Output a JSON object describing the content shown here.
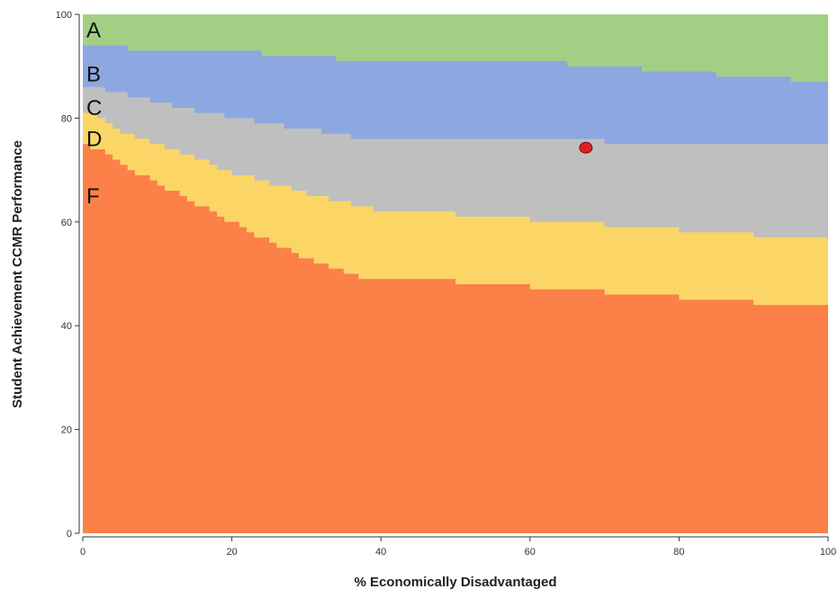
{
  "chart_data": {
    "type": "area",
    "xlabel": "% Economically Disadvantaged",
    "ylabel": "Student Achievement CCMR Performance",
    "xlim": [
      0,
      100
    ],
    "ylim": [
      0,
      100
    ],
    "x_ticks": [
      0,
      20,
      40,
      60,
      80,
      100
    ],
    "y_ticks": [
      0,
      20,
      40,
      60,
      80,
      100
    ],
    "grid": false,
    "band_labels": [
      "A",
      "B",
      "C",
      "D",
      "F"
    ],
    "band_colors": {
      "A": "#a3cf85",
      "B": "#8da8e0",
      "C": "#bfbfbf",
      "D": "#fbd667",
      "F": "#fb8148"
    },
    "x": [
      0,
      1,
      2,
      3,
      4,
      5,
      6,
      7,
      8,
      9,
      10,
      11,
      12,
      13,
      14,
      15,
      16,
      17,
      18,
      19,
      20,
      21,
      22,
      23,
      24,
      25,
      26,
      27,
      28,
      29,
      30,
      31,
      32,
      33,
      34,
      35,
      36,
      37,
      38,
      39,
      40,
      45,
      50,
      55,
      60,
      65,
      70,
      75,
      80,
      85,
      90,
      95,
      100
    ],
    "series": [
      {
        "name": "F",
        "values": [
          75,
          74,
          74,
          73,
          72,
          71,
          70,
          69,
          69,
          68,
          67,
          66,
          66,
          65,
          64,
          63,
          63,
          62,
          61,
          60,
          60,
          59,
          58,
          57,
          57,
          56,
          55,
          55,
          54,
          53,
          53,
          52,
          52,
          51,
          51,
          50,
          50,
          49,
          49,
          49,
          49,
          49,
          48,
          48,
          47,
          47,
          46,
          46,
          45,
          45,
          44,
          44,
          44
        ]
      },
      {
        "name": "D",
        "values": [
          81,
          81,
          80,
          79,
          78,
          77,
          77,
          76,
          76,
          75,
          75,
          74,
          74,
          73,
          73,
          72,
          72,
          71,
          70,
          70,
          69,
          69,
          69,
          68,
          68,
          67,
          67,
          67,
          66,
          66,
          65,
          65,
          65,
          64,
          64,
          64,
          63,
          63,
          63,
          62,
          62,
          62,
          61,
          61,
          60,
          60,
          59,
          59,
          58,
          58,
          57,
          57,
          57
        ]
      },
      {
        "name": "C",
        "values": [
          86,
          86,
          86,
          85,
          85,
          85,
          84,
          84,
          84,
          83,
          83,
          83,
          82,
          82,
          82,
          81,
          81,
          81,
          81,
          80,
          80,
          80,
          80,
          79,
          79,
          79,
          79,
          78,
          78,
          78,
          78,
          78,
          77,
          77,
          77,
          77,
          76,
          76,
          76,
          76,
          76,
          76,
          76,
          76,
          76,
          76,
          75,
          75,
          75,
          75,
          75,
          75,
          75
        ]
      },
      {
        "name": "B",
        "values": [
          94,
          94,
          94,
          94,
          94,
          94,
          93,
          93,
          93,
          93,
          93,
          93,
          93,
          93,
          93,
          93,
          93,
          93,
          93,
          93,
          93,
          93,
          93,
          93,
          92,
          92,
          92,
          92,
          92,
          92,
          92,
          92,
          92,
          92,
          91,
          91,
          91,
          91,
          91,
          91,
          91,
          91,
          91,
          91,
          91,
          90,
          90,
          89,
          89,
          88,
          88,
          87,
          87
        ]
      }
    ],
    "highlight_point": {
      "x": 67.5,
      "y": 74.3,
      "color": "#e02020"
    }
  }
}
